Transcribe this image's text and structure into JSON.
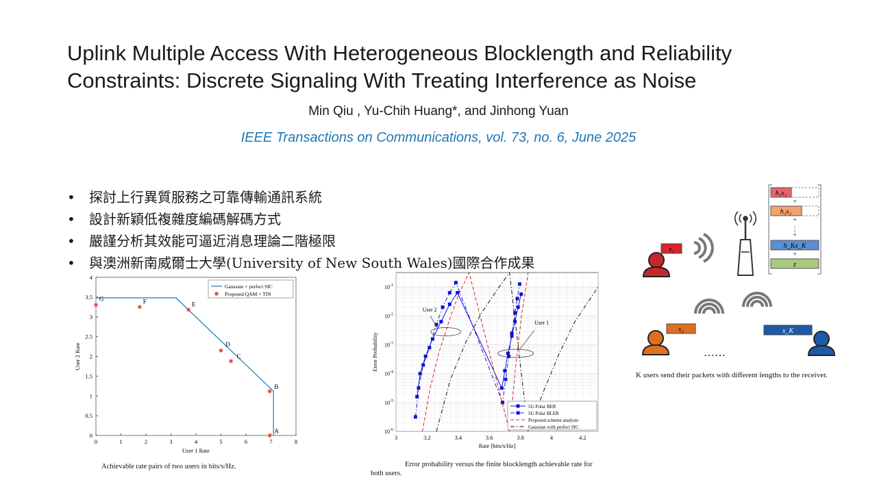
{
  "slide": {
    "title_line1": "Uplink Multiple Access With Heterogeneous Blocklength and Reliability",
    "title_line2": "Constraints: Discrete Signaling With Treating Interference as Noise",
    "authors": "Min Qiu , Yu-Chih Huang*, and Jinhong Yuan",
    "journal": "IEEE Transactions on Communications, vol. 73, no. 6, June 2025",
    "bullets": [
      "探討上行異質服務之可靠傳輸通訊系統",
      "設計新穎低複雜度編碼解碼方式",
      "嚴謹分析其效能可逼近消息理論二階極限",
      "與澳洲新南威爾士大學(University of New South Wales)國際合作成果"
    ]
  },
  "figures": {
    "rate_region_caption": "Achievable rate pairs of two users in bits/s/Hz.",
    "error_caption_line1": "Error probability versus the finite blocklength achievable rate for",
    "error_caption_line2": "both users.",
    "system_caption": "K users send their packets with different lengths to the receiver."
  },
  "system_diagram": {
    "signal_stack": [
      "h₁x₁",
      "+",
      "h₂x₂",
      "+",
      "⋮",
      "+",
      "h_Kx_K",
      "+",
      "z"
    ],
    "box_colors": [
      "#e8636b",
      "#f2a36b",
      "#5b8fd1",
      "#a9c97e"
    ],
    "user_labels": [
      "x₁",
      "x₂",
      "x_K"
    ],
    "ellipsis": "……",
    "user_colors": [
      "#c62828",
      "#e07020",
      "#1e5aa8"
    ]
  },
  "chart_data": [
    {
      "type": "line",
      "xlabel": "User 1 Rate",
      "ylabel": "User 2 Rate",
      "xlim": [
        0,
        8
      ],
      "ylim": [
        0,
        4
      ],
      "xticks": [
        "0",
        "1",
        "2",
        "3",
        "4",
        "5",
        "6",
        "7",
        "8"
      ],
      "yticks": [
        "0",
        "0.5",
        "1",
        "1.5",
        "2",
        "2.5",
        "3",
        "3.5",
        "4"
      ],
      "legend_position": "top-right",
      "series": [
        {
          "name": "Gaussian + perfect SIC",
          "style": "solid",
          "color": "#1f77b4",
          "x": [
            0,
            3.2,
            7.1,
            7.1
          ],
          "y": [
            3.48,
            3.48,
            1.12,
            0
          ]
        },
        {
          "name": "Proposed QAM + TIN",
          "style": "marker-star",
          "color": "#e8463a",
          "x": [
            0,
            1.75,
            3.7,
            5.0,
            5.4,
            6.95,
            6.95
          ],
          "y": [
            3.3,
            3.25,
            3.18,
            2.15,
            1.88,
            1.12,
            0
          ]
        }
      ],
      "annotations": [
        {
          "text": "G",
          "x": 0.05,
          "y": 3.4
        },
        {
          "text": "F",
          "x": 1.8,
          "y": 3.33
        },
        {
          "text": "E",
          "x": 3.75,
          "y": 3.26
        },
        {
          "text": "D",
          "x": 5.1,
          "y": 2.25
        },
        {
          "text": "C",
          "x": 5.55,
          "y": 1.95
        },
        {
          "text": "B",
          "x": 7.05,
          "y": 1.18
        },
        {
          "text": "A",
          "x": 7.05,
          "y": 0.06
        }
      ]
    },
    {
      "type": "line",
      "xlabel": "Rate [bits/s/Hz]",
      "ylabel": "Error Probability",
      "xlim": [
        3.0,
        4.3
      ],
      "ylim_log10": [
        -6,
        -0.5
      ],
      "log_y": true,
      "grid": true,
      "xticks": [
        "3",
        "3.2",
        "3.4",
        "3.6",
        "3.8",
        "4",
        "4.2"
      ],
      "yticks": [
        "10^-6",
        "10^-5",
        "10^-4",
        "10^-3",
        "10^-2",
        "10^-1"
      ],
      "legend_position": "bottom-right",
      "annotations": [
        {
          "text": "User 2",
          "x": 3.17,
          "y_log10": -1.85
        },
        {
          "text": "User 1",
          "x": 3.89,
          "y_log10": -2.3
        }
      ],
      "series": [
        {
          "name": "5G Polar BER",
          "style": "solid-square",
          "color": "#1010e0",
          "x": [
            3.135,
            3.155,
            3.19,
            3.235,
            3.29,
            3.345,
            3.395,
            3.68,
            3.7,
            3.72,
            3.745,
            3.765,
            3.785,
            3.805
          ],
          "y_log10": [
            -4.8,
            -4.0,
            -3.4,
            -2.8,
            -2.2,
            -1.6,
            -1.2,
            -4.5,
            -3.9,
            -3.3,
            -2.7,
            -2.2,
            -1.7,
            -1.25
          ]
        },
        {
          "name": "5G Polar BLER",
          "style": "dashdot-square",
          "color": "#1010e0",
          "x": [
            3.125,
            3.145,
            3.175,
            3.215,
            3.26,
            3.3,
            3.345,
            3.385,
            3.685,
            3.705,
            3.725,
            3.745,
            3.765,
            3.78,
            3.795
          ],
          "y_log10": [
            -5.5,
            -4.5,
            -3.7,
            -3.1,
            -2.3,
            -1.7,
            -1.2,
            -0.85,
            -5.0,
            -4.2,
            -3.4,
            -2.6,
            -1.9,
            -1.4,
            -0.9
          ]
        },
        {
          "name": "Proposed scheme analysis",
          "style": "dashed",
          "color": "#e02020",
          "x": [
            3.17,
            3.22,
            3.28,
            3.34,
            3.4,
            3.47,
            3.73,
            3.77,
            3.81,
            3.85
          ],
          "y_log10": [
            -6,
            -4.5,
            -3.2,
            -2.2,
            -1.3,
            -0.5,
            -6,
            -3.7,
            -1.9,
            -0.5
          ]
        },
        {
          "name": "Gaussian with perfect SIC",
          "style": "dashdot",
          "color": "#111111",
          "x": [
            3.26,
            3.35,
            3.45,
            3.55,
            3.65,
            3.73,
            3.85,
            3.95,
            4.05,
            4.15,
            4.3
          ],
          "y_log10": [
            -6,
            -4.2,
            -2.9,
            -1.9,
            -1.1,
            -0.5,
            -6,
            -4.6,
            -3.3,
            -2.2,
            -1.0
          ]
        }
      ]
    }
  ]
}
